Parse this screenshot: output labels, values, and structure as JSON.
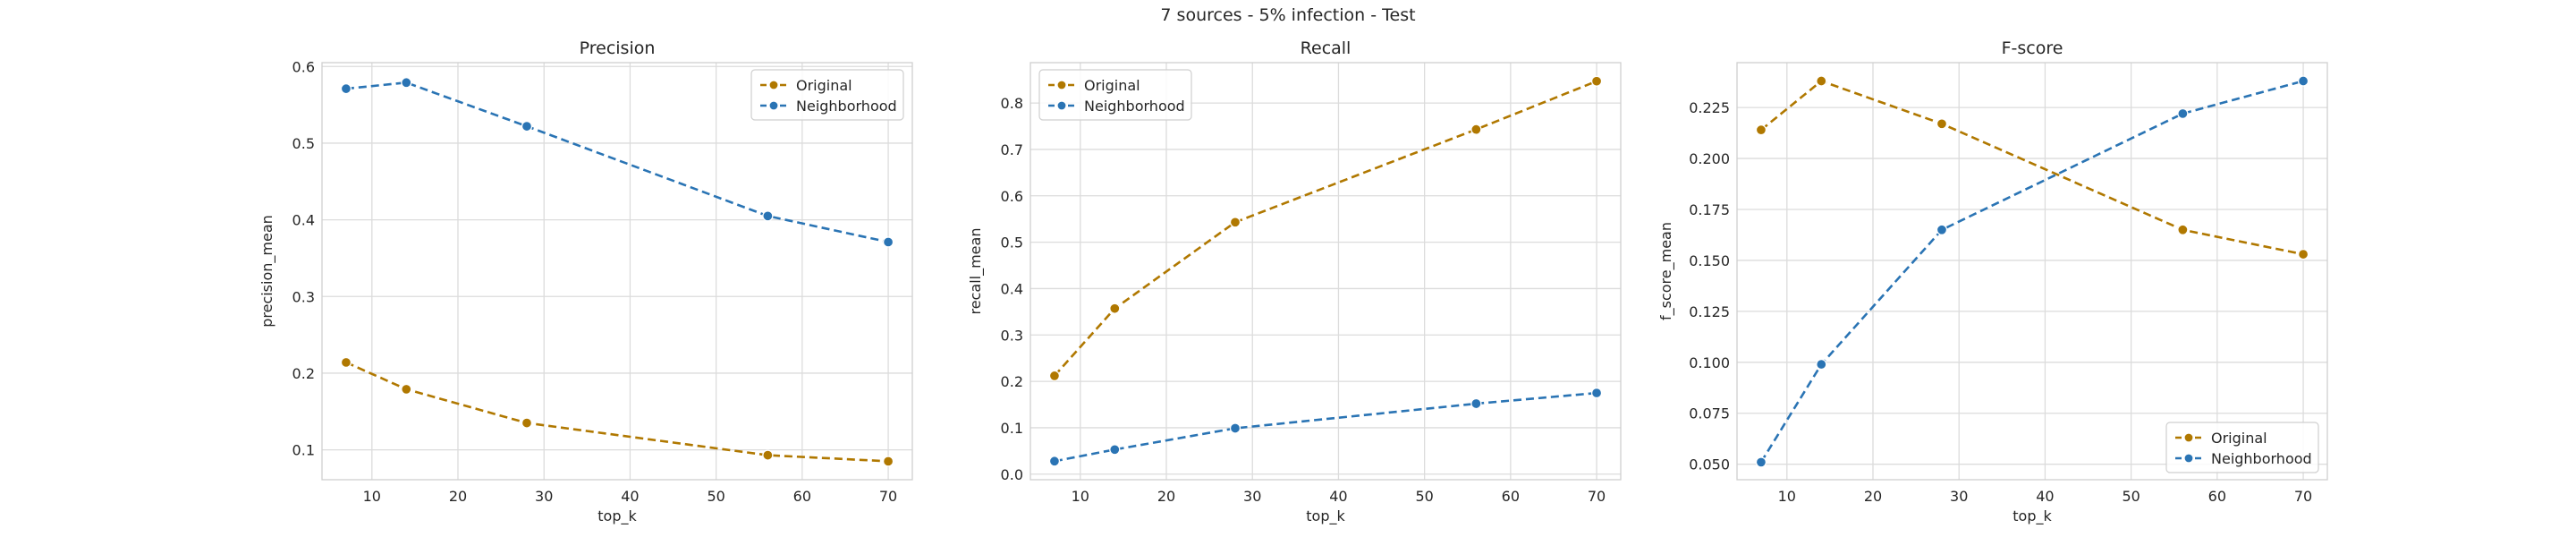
{
  "suptitle": "7 sources - 5% infection - Test",
  "colors": {
    "original": "#b07800",
    "neighborhood": "#2a74b4",
    "grid": "#dcdcdc",
    "spine": "#cfcfcf"
  },
  "chart_data": [
    {
      "type": "line",
      "title": "Precision",
      "xlabel": "top_k",
      "ylabel": "precision_mean",
      "xlim": [
        4.2,
        72.8
      ],
      "ylim": [
        0.061,
        0.605
      ],
      "xticks": [
        10,
        20,
        30,
        40,
        50,
        60,
        70
      ],
      "yticks": [
        0.1,
        0.2,
        0.3,
        0.4,
        0.5,
        0.6
      ],
      "ytick_labels": [
        "0.1",
        "0.2",
        "0.3",
        "0.4",
        "0.5",
        "0.6"
      ],
      "legend": "top-right",
      "grid": true,
      "x": [
        7,
        14,
        28,
        56,
        70
      ],
      "series": [
        {
          "name": "Original",
          "values": [
            0.214,
            0.179,
            0.135,
            0.093,
            0.085
          ]
        },
        {
          "name": "Neighborhood",
          "values": [
            0.571,
            0.579,
            0.522,
            0.405,
            0.371
          ]
        }
      ]
    },
    {
      "type": "line",
      "title": "Recall",
      "xlabel": "top_k",
      "ylabel": "recall_mean",
      "xlim": [
        4.2,
        72.8
      ],
      "ylim": [
        -0.012,
        0.887
      ],
      "xticks": [
        10,
        20,
        30,
        40,
        50,
        60,
        70
      ],
      "yticks": [
        0.0,
        0.1,
        0.2,
        0.3,
        0.4,
        0.5,
        0.6,
        0.7,
        0.8
      ],
      "ytick_labels": [
        "0.0",
        "0.1",
        "0.2",
        "0.3",
        "0.4",
        "0.5",
        "0.6",
        "0.7",
        "0.8"
      ],
      "legend": "top-left",
      "grid": true,
      "x": [
        7,
        14,
        28,
        56,
        70
      ],
      "series": [
        {
          "name": "Original",
          "values": [
            0.212,
            0.357,
            0.543,
            0.743,
            0.847
          ]
        },
        {
          "name": "Neighborhood",
          "values": [
            0.028,
            0.053,
            0.099,
            0.152,
            0.175
          ]
        }
      ]
    },
    {
      "type": "line",
      "title": "F-score",
      "xlabel": "top_k",
      "ylabel": "f_score_mean",
      "xlim": [
        4.2,
        72.8
      ],
      "ylim": [
        0.0424,
        0.247
      ],
      "xticks": [
        10,
        20,
        30,
        40,
        50,
        60,
        70
      ],
      "yticks": [
        0.05,
        0.075,
        0.1,
        0.125,
        0.15,
        0.175,
        0.2,
        0.225
      ],
      "ytick_labels": [
        "0.050",
        "0.075",
        "0.100",
        "0.125",
        "0.150",
        "0.175",
        "0.200",
        "0.225"
      ],
      "legend": "bottom-right",
      "grid": true,
      "x": [
        7,
        14,
        28,
        56,
        70
      ],
      "series": [
        {
          "name": "Original",
          "values": [
            0.214,
            0.238,
            0.217,
            0.165,
            0.153
          ]
        },
        {
          "name": "Neighborhood",
          "values": [
            0.051,
            0.099,
            0.165,
            0.222,
            0.238
          ]
        }
      ]
    }
  ]
}
